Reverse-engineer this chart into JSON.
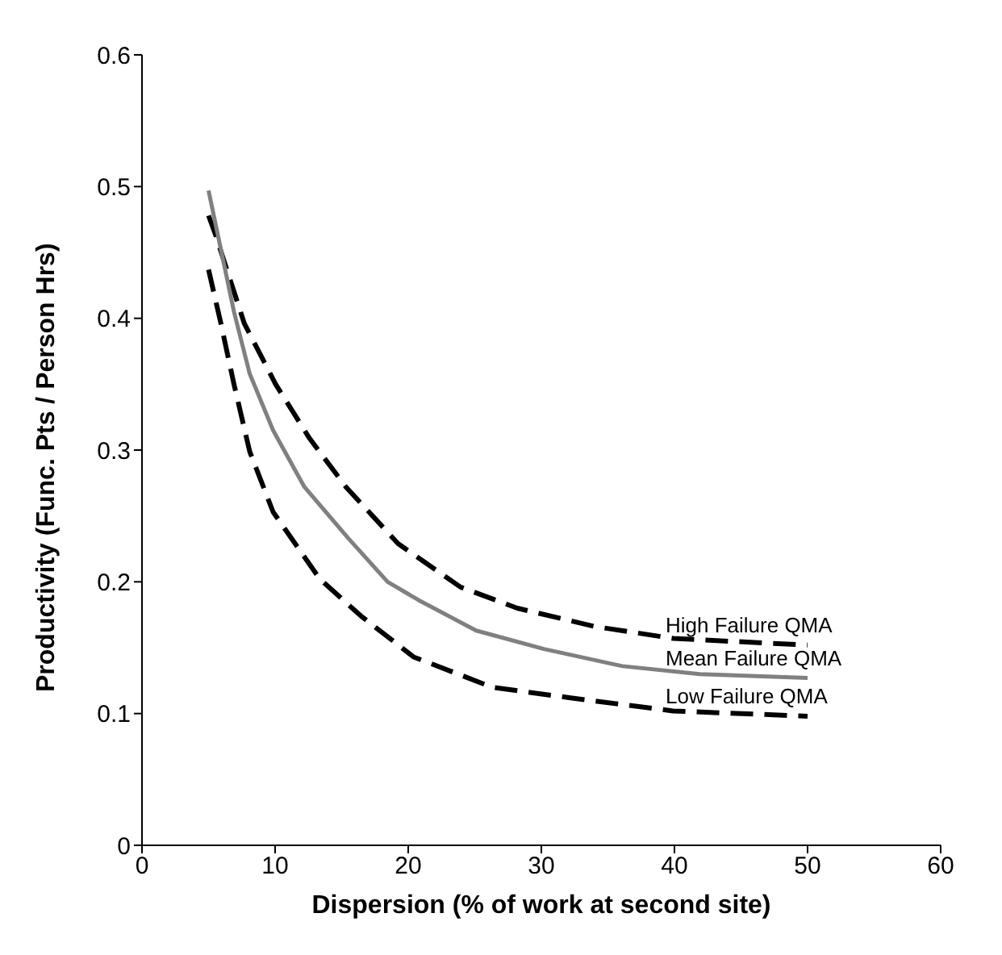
{
  "chart_data": {
    "type": "line",
    "xlabel": "Dispersion (% of work at second site)",
    "ylabel": "Productivity (Func. Pts / Person Hrs)",
    "xlim": [
      0,
      60
    ],
    "xticks": [
      0,
      10,
      20,
      30,
      40,
      50,
      60
    ],
    "ylim": [
      0,
      0.6
    ],
    "yticks": [
      0,
      0.1,
      0.2,
      0.3,
      0.4,
      0.5,
      0.6
    ],
    "grid": false,
    "legend": false,
    "marker": "none",
    "series": [
      {
        "name": "High Failure QMA",
        "color": "#000000",
        "line_style": "dashed",
        "x": [
          5,
          5.54,
          7.69,
          10.04,
          12.58,
          15.32,
          19.24,
          23.93,
          28.19,
          34.06,
          39.93,
          50
        ],
        "values": [
          0.478,
          0.463,
          0.396,
          0.35,
          0.309,
          0.272,
          0.229,
          0.196,
          0.18,
          0.166,
          0.157,
          0.152
        ]
      },
      {
        "name": "Mean Failure QMA",
        "color": "#808080",
        "line_style": "solid",
        "x": [
          5,
          6.91,
          8.09,
          9.85,
          12.2,
          15.5,
          18.45,
          20.8,
          25.1,
          30.2,
          36.1,
          41.9,
          50
        ],
        "values": [
          0.497,
          0.405,
          0.358,
          0.315,
          0.272,
          0.233,
          0.2,
          0.186,
          0.163,
          0.149,
          0.136,
          0.13,
          0.127
        ]
      },
      {
        "name": "Low Failure QMA",
        "color": "#000000",
        "line_style": "dashed",
        "x": [
          5,
          5.93,
          6.91,
          8.09,
          9.85,
          13.37,
          16.46,
          20.4,
          26.3,
          32.1,
          39.9,
          50
        ],
        "values": [
          0.437,
          0.396,
          0.35,
          0.299,
          0.253,
          0.202,
          0.174,
          0.143,
          0.12,
          0.112,
          0.102,
          0.098
        ]
      }
    ]
  }
}
